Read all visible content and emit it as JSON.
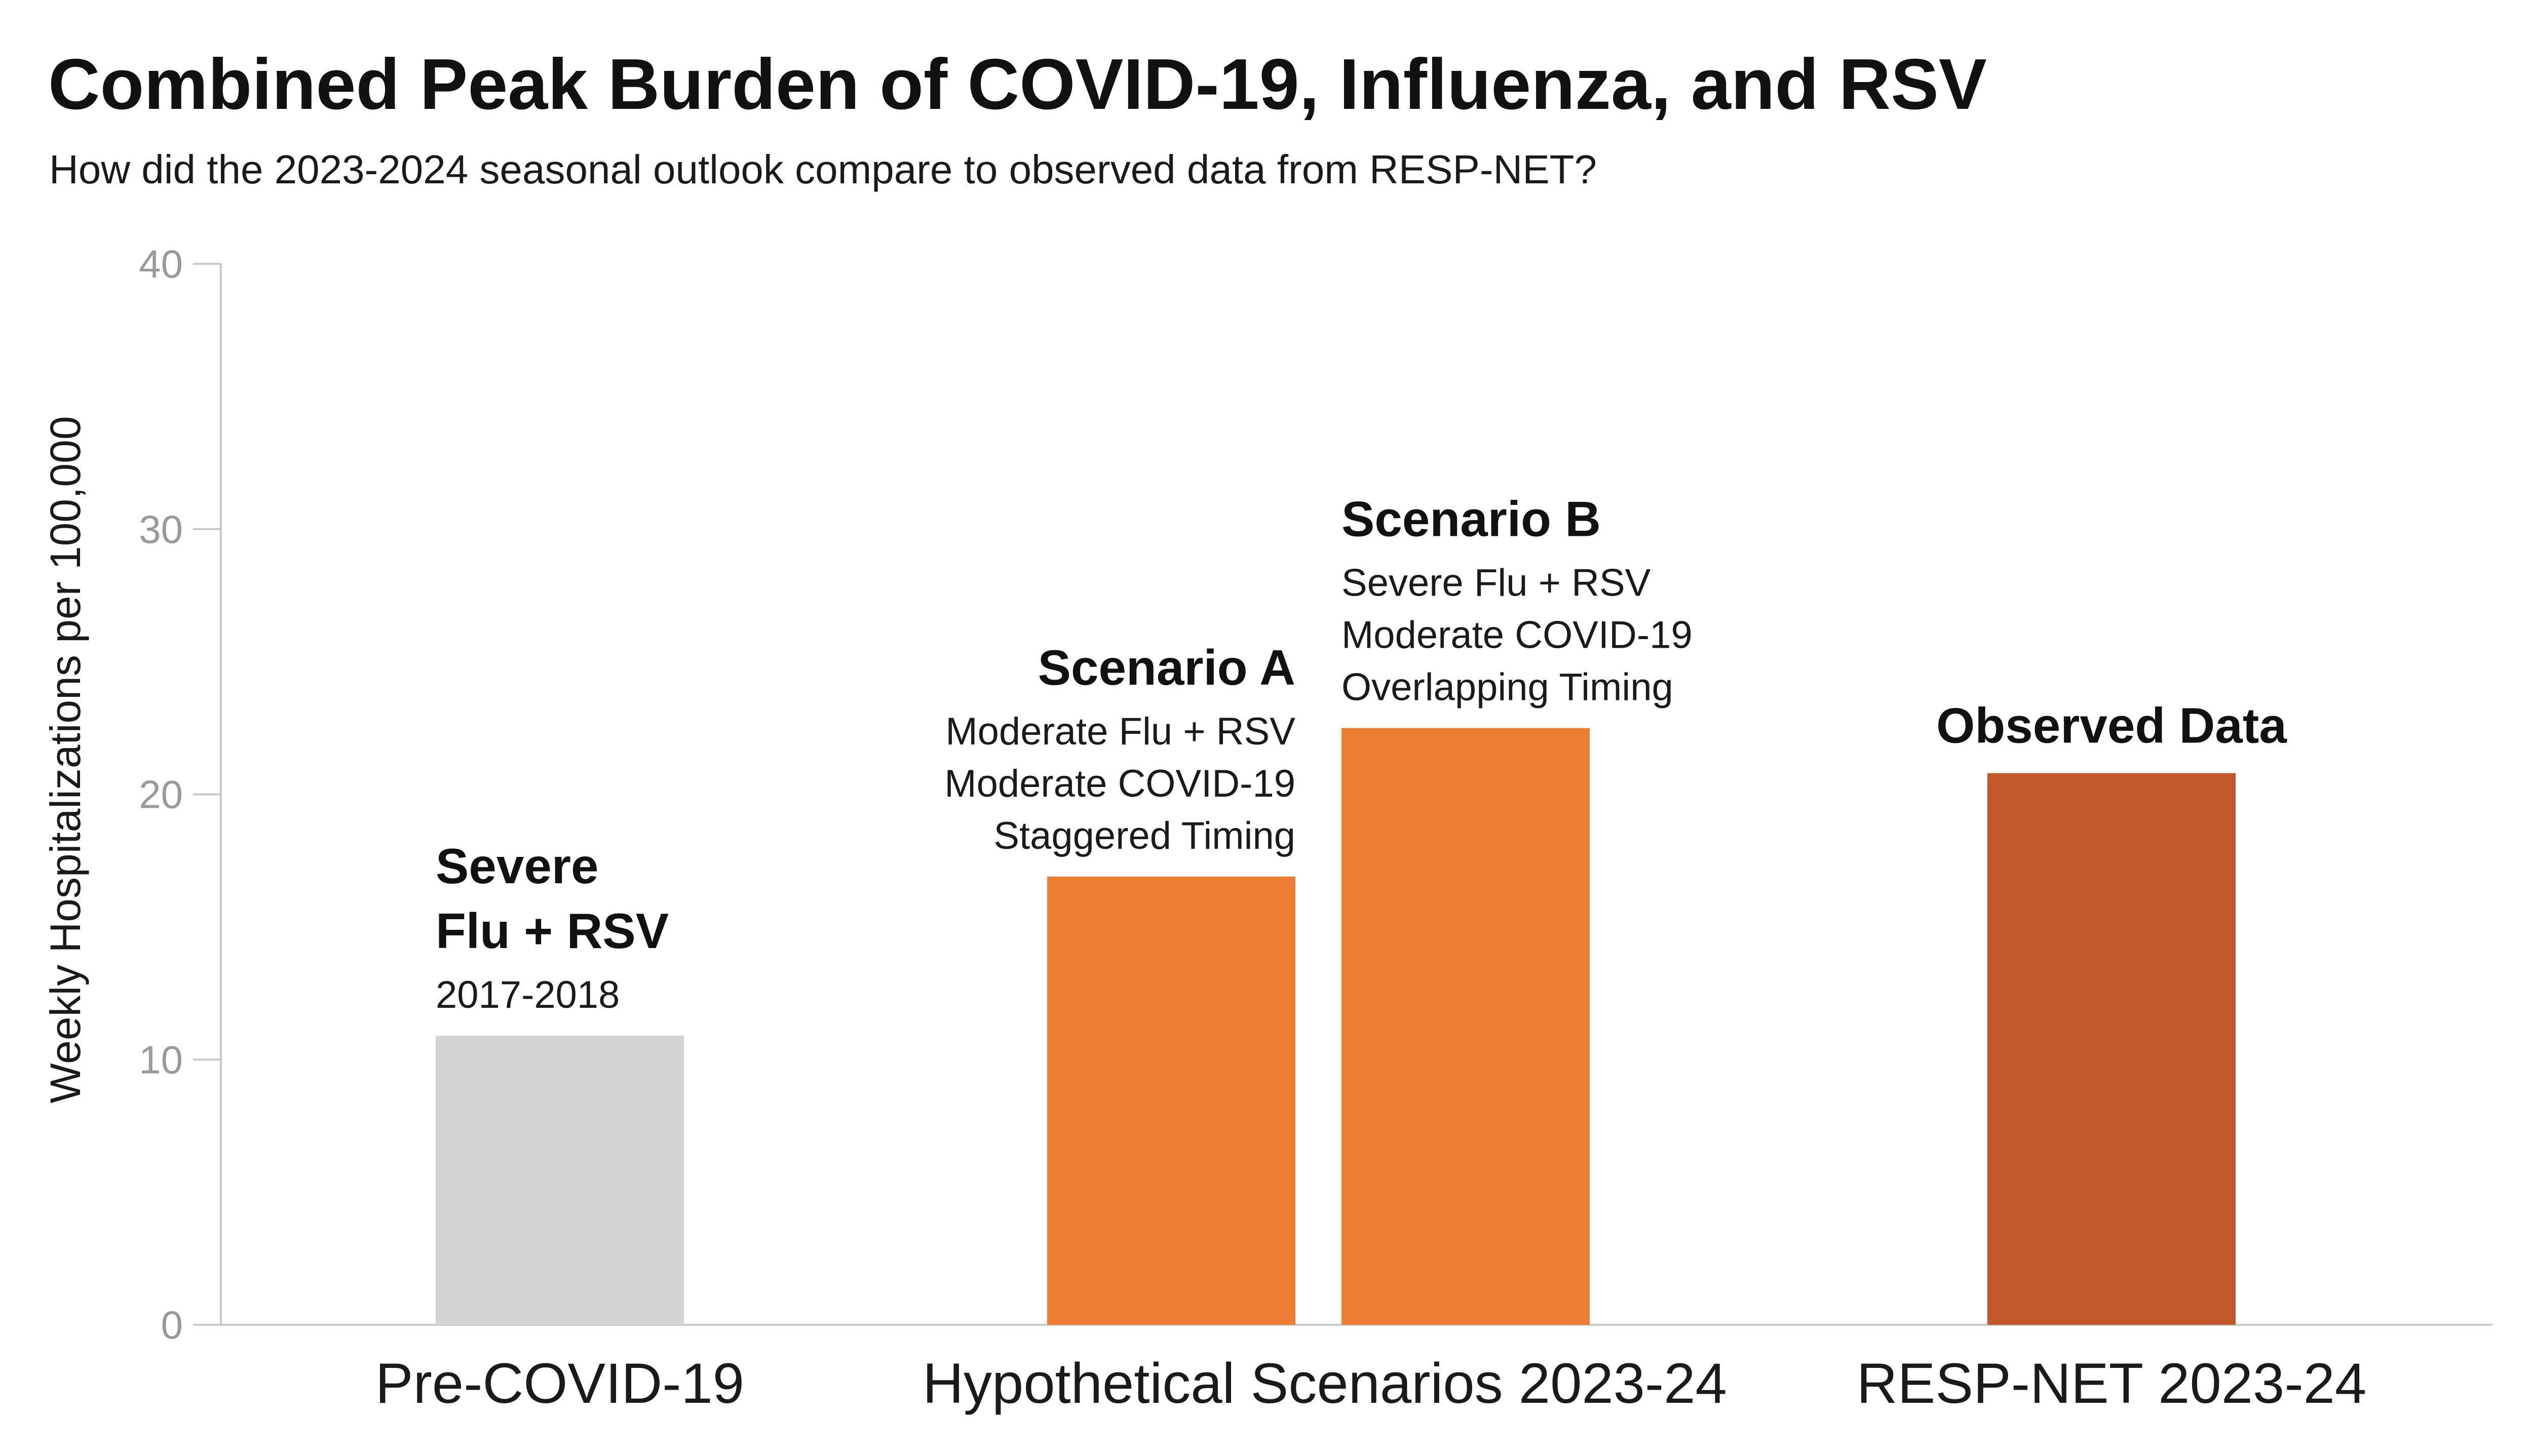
{
  "chart_data": {
    "type": "bar",
    "title": "Combined Peak Burden of COVID-19, Influenza, and RSV",
    "subtitle": "How did the 2023-2024 seasonal outlook compare to observed data from RESP-NET?",
    "ylabel": "Weekly Hospitalizations per 100,000",
    "xlabel": "",
    "ylim": [
      0,
      40
    ],
    "yticks": [
      0,
      10,
      20,
      30,
      40
    ],
    "categories": [
      "Pre-COVID-19",
      "Hypothetical Scenarios 2023-24",
      "RESP-NET 2023-24"
    ],
    "bars": [
      {
        "category": "Pre-COVID-19",
        "value": 10.9,
        "color": "#d3d4d4",
        "label_title": [
          "Severe",
          "Flu + RSV"
        ],
        "label_lines": [
          "2017-2018"
        ],
        "label_align": "left"
      },
      {
        "category": "Hypothetical Scenarios 2023-24",
        "value": 16.9,
        "color": "#ed7d33",
        "label_title": [
          "Scenario A"
        ],
        "label_lines": [
          "Moderate Flu + RSV",
          "Moderate COVID-19",
          "Staggered Timing"
        ],
        "label_align": "right"
      },
      {
        "category": "Hypothetical Scenarios 2023-24",
        "value": 22.5,
        "color": "#ed7d33",
        "label_title": [
          "Scenario B"
        ],
        "label_lines": [
          "Severe Flu + RSV",
          "Moderate COVID-19",
          "Overlapping Timing"
        ],
        "label_align": "left"
      },
      {
        "category": "RESP-NET 2023-24",
        "value": 20.8,
        "color": "#c4572a",
        "label_title": [
          "Observed Data"
        ],
        "label_lines": [],
        "label_align": "center"
      }
    ],
    "colors": {
      "axis": "#c8c8c8",
      "tick_text": "#9a9a9a"
    }
  }
}
